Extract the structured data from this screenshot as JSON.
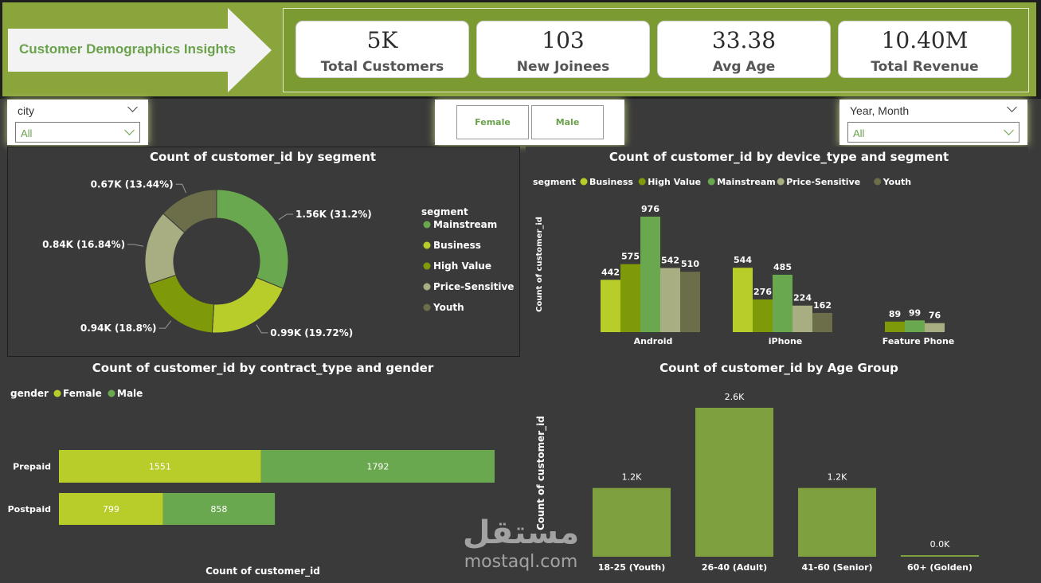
{
  "header": {
    "title": "Customer Demographics Insights",
    "kpis": [
      {
        "value": "5K",
        "label": "Total Customers"
      },
      {
        "value": "103",
        "label": "New Joinees"
      },
      {
        "value": "33.38",
        "label": "Avg Age"
      },
      {
        "value": "10.40M",
        "label": "Total Revenue"
      }
    ]
  },
  "filters": {
    "city": {
      "title": "city",
      "value": "All"
    },
    "gender_buttons": [
      "Female",
      "Male"
    ],
    "date": {
      "title": "Year, Month",
      "value": "All"
    }
  },
  "colors": {
    "mainstream": "#6aa84f",
    "business": "#b8cc2a",
    "high_value": "#7e9a08",
    "price_sensitive": "#a9ad82",
    "youth": "#6b6e48",
    "female": "#b8cc2a",
    "male": "#6aa84f",
    "age_bar": "#7ea03e",
    "panel": "#3a3a3a",
    "header_green": "#8aa53b"
  },
  "chart_data": [
    {
      "id": "segment-donut",
      "type": "pie",
      "title": "Count of customer_id by segment",
      "legend_title": "segment",
      "legend_position": "right",
      "legend": [
        "Mainstream",
        "Business",
        "High Value",
        "Price-Sensitive",
        "Youth"
      ],
      "slices": [
        {
          "name": "Mainstream",
          "value": 1.56,
          "percent": 31.2,
          "label": "1.56K (31.2%)"
        },
        {
          "name": "Business",
          "value": 0.99,
          "percent": 19.72,
          "label": "0.99K (19.72%)"
        },
        {
          "name": "High Value",
          "value": 0.94,
          "percent": 18.8,
          "label": "0.94K (18.8%)"
        },
        {
          "name": "Price-Sensitive",
          "value": 0.84,
          "percent": 16.84,
          "label": "0.84K (16.84%)"
        },
        {
          "name": "Youth",
          "value": 0.67,
          "percent": 13.44,
          "label": "0.67K (13.44%)"
        }
      ]
    },
    {
      "id": "device-segment",
      "type": "bar",
      "title": "Count of customer_id by device_type and segment",
      "legend_title": "segment",
      "legend_position": "top-left",
      "ylabel": "Count of customer_id",
      "categories": [
        "Android",
        "iPhone",
        "Feature Phone"
      ],
      "series": [
        {
          "name": "Business",
          "values": [
            442,
            544,
            null
          ]
        },
        {
          "name": "High Value",
          "values": [
            575,
            276,
            89
          ]
        },
        {
          "name": "Mainstream",
          "values": [
            976,
            485,
            99
          ]
        },
        {
          "name": "Price-Sensitive",
          "values": [
            542,
            224,
            76
          ]
        },
        {
          "name": "Youth",
          "values": [
            510,
            162,
            null
          ]
        }
      ]
    },
    {
      "id": "contract-gender",
      "type": "bar",
      "orientation": "horizontal",
      "stacked": true,
      "title": "Count of customer_id by contract_type and gender",
      "legend_title": "gender",
      "legend_position": "top-left",
      "xlabel": "Count of customer_id",
      "categories": [
        "Prepaid",
        "Postpaid"
      ],
      "series": [
        {
          "name": "Female",
          "values": [
            1551,
            799
          ]
        },
        {
          "name": "Male",
          "values": [
            1792,
            858
          ]
        }
      ]
    },
    {
      "id": "age-group",
      "type": "bar",
      "title": "Count of customer_id by Age Group",
      "ylabel": "Count of customer_id",
      "categories": [
        "18-25 (Youth)",
        "26-40 (Adult)",
        "41-60 (Senior)",
        "60+ (Golden)"
      ],
      "values": [
        1200,
        2600,
        1200,
        20
      ],
      "labels": [
        "1.2K",
        "2.6K",
        "1.2K",
        "0.0K"
      ]
    }
  ],
  "watermark": {
    "arabic": "مستقل",
    "latin": "mostaql.com"
  }
}
